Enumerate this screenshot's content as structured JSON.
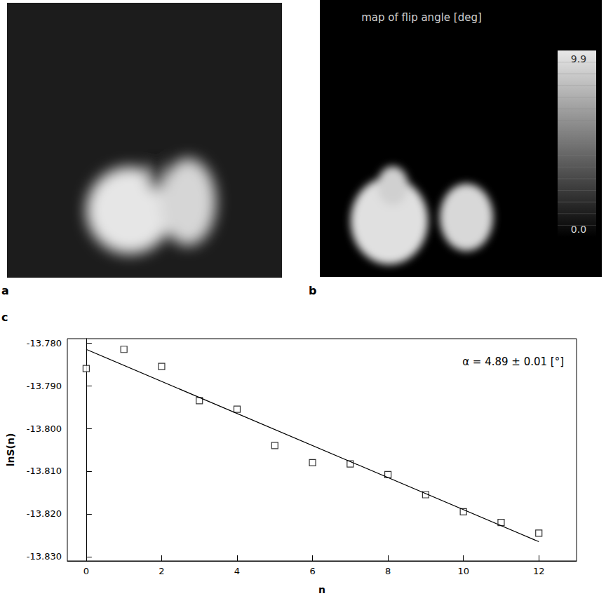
{
  "panels": [
    {
      "label": "a"
    },
    {
      "label": "b",
      "title": "map of flip angle [deg]",
      "colorbar": {
        "range": [
          0,
          9.9
        ],
        "ticks": [
          {
            "value": 0,
            "label": "0.0"
          },
          9.9
        ]
      }
    }
  ],
  "chart_data": {
    "label": "c",
    "type": "scatter",
    "x_label": "n",
    "y_label": "lnS(n)",
    "annotation": "α = 4.89 ± 0.01 [°]",
    "color": "#000000",
    "grid": false,
    "series": [
      {
        "type": "scatter",
        "marker": "square",
        "x": [
          0,
          1,
          2,
          3,
          4,
          5,
          6,
          7,
          8,
          9,
          10,
          11,
          12
        ],
        "values": [
          -13.786,
          -13.7815,
          -13.7855,
          -13.7935,
          -13.7955,
          -13.804,
          -13.808,
          -13.8083,
          -13.8108,
          -13.8155,
          -13.8195,
          -13.822,
          -13.8245
        ]
      },
      {
        "type": "line",
        "line_style": "solid",
        "x": [
          0,
          12
        ],
        "values": [
          -13.7815,
          -13.8265
        ]
      }
    ],
    "xlim": [
      -0.5,
      13
    ],
    "xticks": [
      0,
      2,
      4,
      6,
      8,
      10,
      12
    ],
    "ylim": [
      -13.831,
      -13.779
    ],
    "yticks": [
      {
        "value": -13.78,
        "label": "-13.780"
      },
      {
        "value": -13.79,
        "label": "-13.790"
      },
      {
        "value": -13.8,
        "label": "-13.800"
      },
      {
        "value": -13.81,
        "label": "-13.810"
      },
      {
        "value": -13.82,
        "label": "-13.820"
      },
      {
        "value": -13.83,
        "label": "-13.830"
      }
    ]
  }
}
